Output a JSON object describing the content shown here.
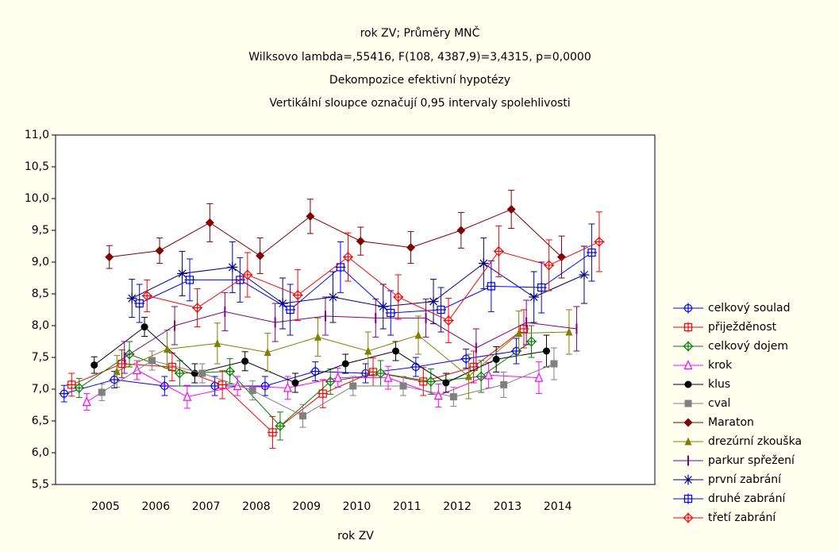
{
  "chart_data": {
    "type": "line",
    "title": "rok ZV; Průměry MNČ",
    "subtitle": [
      "Wilksovo lambda=,55416, F(108, 4387,9)=3,4315, p=0,0000",
      "Dekompozice efektivní hypotézy",
      "Vertikální sloupce označují 0,95 intervaly spolehlivosti"
    ],
    "x_label": "rok ZV",
    "categories": [
      "2005",
      "2006",
      "2007",
      "2008",
      "2009",
      "2010",
      "2011",
      "2012",
      "2013",
      "2014"
    ],
    "ylim": [
      5.5,
      11.0
    ],
    "yticks": [
      {
        "value": 5.5,
        "label": "5,5"
      },
      {
        "value": 6.0,
        "label": "6,0"
      },
      {
        "value": 6.5,
        "label": "6,5"
      },
      {
        "value": 7.0,
        "label": "7,0"
      },
      {
        "value": 7.5,
        "label": "7,5"
      },
      {
        "value": 8.0,
        "label": "8,0"
      },
      {
        "value": 8.5,
        "label": "8,5"
      },
      {
        "value": 9.0,
        "label": "9,0"
      },
      {
        "value": 9.5,
        "label": "9,5"
      },
      {
        "value": 10.0,
        "label": "10,0"
      },
      {
        "value": 10.5,
        "label": "10,5"
      },
      {
        "value": 11.0,
        "label": "11,0"
      }
    ],
    "legend": "right",
    "series": [
      {
        "name": "celkový soulad",
        "color": "#0000ff",
        "marker": "circle-plus",
        "values": [
          6.93,
          7.15,
          7.05,
          7.05,
          7.05,
          7.28,
          7.25,
          7.35,
          7.48,
          7.6
        ],
        "errors": [
          0.13,
          0.13,
          0.15,
          0.15,
          0.15,
          0.15,
          0.15,
          0.15,
          0.15,
          0.2
        ]
      },
      {
        "name": "přiježděnost",
        "color": "#ff0000",
        "marker": "square-plus",
        "values": [
          7.07,
          7.4,
          7.35,
          7.07,
          6.32,
          6.93,
          7.27,
          7.12,
          7.35,
          7.95
        ],
        "errors": [
          0.18,
          0.22,
          0.22,
          0.22,
          0.25,
          0.22,
          0.22,
          0.22,
          0.25,
          0.3
        ]
      },
      {
        "name": "celkový dojem",
        "color": "#008000",
        "marker": "diamond-plus",
        "values": [
          7.02,
          7.55,
          7.25,
          7.28,
          6.42,
          7.12,
          7.25,
          7.12,
          7.2,
          7.75
        ],
        "errors": [
          0.15,
          0.2,
          0.2,
          0.2,
          0.22,
          0.2,
          0.2,
          0.2,
          0.25,
          0.25
        ]
      },
      {
        "name": "krok",
        "color": "#ff00ff",
        "marker": "triangle",
        "values": [
          6.8,
          7.3,
          6.88,
          7.05,
          7.02,
          7.18,
          7.18,
          6.9,
          7.22,
          7.18
        ],
        "errors": [
          0.13,
          0.15,
          0.18,
          0.15,
          0.18,
          0.15,
          0.18,
          0.18,
          0.2,
          0.25
        ]
      },
      {
        "name": "klus",
        "color": "#000000",
        "marker": "circle",
        "values": [
          7.38,
          7.98,
          7.25,
          7.44,
          7.1,
          7.4,
          7.6,
          7.1,
          7.47,
          7.6
        ],
        "errors": [
          0.13,
          0.15,
          0.15,
          0.15,
          0.15,
          0.15,
          0.15,
          0.15,
          0.2,
          0.25
        ]
      },
      {
        "name": "cval",
        "color": "#808080",
        "marker": "square",
        "values": [
          6.95,
          7.45,
          7.25,
          6.98,
          6.58,
          7.05,
          7.05,
          6.88,
          7.07,
          7.4
        ],
        "errors": [
          0.13,
          0.15,
          0.15,
          0.15,
          0.18,
          0.15,
          0.15,
          0.15,
          0.2,
          0.25
        ]
      },
      {
        "name": "Maraton",
        "color": "#800000",
        "marker": "diamond",
        "values": [
          9.08,
          9.18,
          9.62,
          9.1,
          9.72,
          9.33,
          9.23,
          9.5,
          9.83,
          9.08
        ],
        "errors": [
          0.18,
          0.2,
          0.3,
          0.28,
          0.27,
          0.22,
          0.25,
          0.28,
          0.3,
          0.33
        ]
      },
      {
        "name": "drezúrní zkouška",
        "color": "#808000",
        "marker": "triangle-filled",
        "values": [
          7.28,
          7.63,
          7.72,
          7.58,
          7.82,
          7.6,
          7.85,
          7.2,
          7.88,
          7.9
        ],
        "errors": [
          0.25,
          0.3,
          0.32,
          0.3,
          0.3,
          0.3,
          0.3,
          0.35,
          0.35,
          0.35
        ]
      },
      {
        "name": "parkur spřežení",
        "color": "#800080",
        "marker": "bar",
        "values": [
          7.5,
          8.0,
          8.22,
          8.05,
          8.15,
          8.12,
          8.12,
          7.65,
          8.05,
          7.95
        ],
        "errors": [
          0.25,
          0.3,
          0.3,
          0.3,
          0.3,
          0.3,
          0.3,
          0.3,
          0.35,
          0.35
        ]
      },
      {
        "name": "první zabrání",
        "color": "#000080",
        "marker": "star",
        "values": [
          8.43,
          8.82,
          8.92,
          8.35,
          8.45,
          8.3,
          8.38,
          8.98,
          8.45,
          8.8
        ],
        "errors": [
          0.3,
          0.35,
          0.4,
          0.4,
          0.4,
          0.35,
          0.35,
          0.4,
          0.4,
          0.45
        ]
      },
      {
        "name": "druhé zabrání",
        "color": "#0000ff",
        "marker": "square-plus",
        "values": [
          8.35,
          8.72,
          8.72,
          8.25,
          8.92,
          8.2,
          8.25,
          8.62,
          8.6,
          9.15
        ],
        "errors": [
          0.3,
          0.33,
          0.35,
          0.4,
          0.4,
          0.35,
          0.35,
          0.4,
          0.4,
          0.45
        ]
      },
      {
        "name": "třetí zabrání",
        "color": "#ff0000",
        "marker": "diamond-plus",
        "values": [
          8.47,
          8.28,
          8.8,
          8.48,
          9.08,
          8.45,
          8.08,
          9.17,
          8.95,
          9.32
        ],
        "errors": [
          0.25,
          0.3,
          0.35,
          0.4,
          0.38,
          0.35,
          0.35,
          0.4,
          0.4,
          0.47
        ]
      }
    ]
  }
}
